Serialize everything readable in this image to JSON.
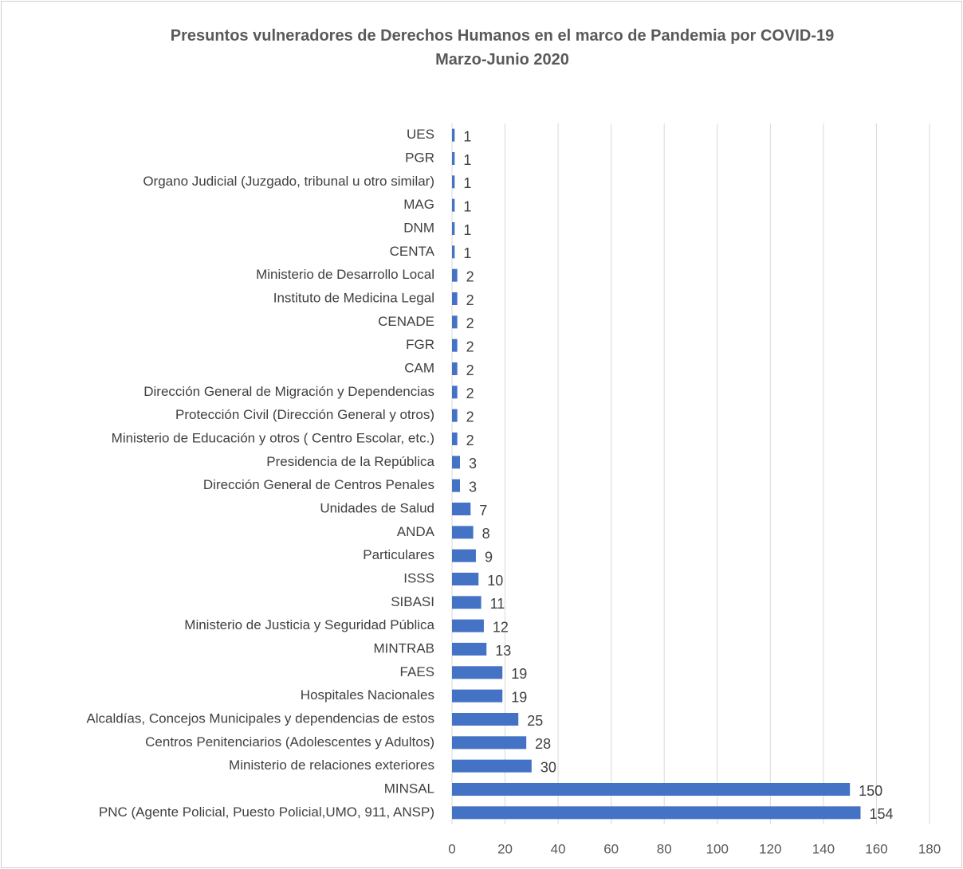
{
  "chart_data": {
    "type": "barh",
    "title": "Presuntos vulneradores de Derechos Humanos en el marco de Pandemia por COVID-19",
    "subtitle": "Marzo-Junio 2020",
    "categories": [
      "UES",
      "PGR",
      "Organo Judicial (Juzgado, tribunal u otro similar)",
      "MAG",
      "DNM",
      "CENTA",
      "Ministerio de Desarrollo Local",
      "Instituto de Medicina Legal",
      "CENADE",
      "FGR",
      "CAM",
      "Dirección General de Migración y Dependencias",
      "Protección Civil (Dirección General y otros)",
      "Ministerio de Educación y otros ( Centro Escolar, etc.)",
      "Presidencia de la República",
      "Dirección General de Centros Penales",
      "Unidades de Salud",
      "ANDA",
      "Particulares",
      "ISSS",
      "SIBASI",
      "Ministerio de Justicia y Seguridad Pública",
      "MINTRAB",
      "FAES",
      "Hospitales Nacionales",
      "Alcaldías, Concejos Municipales y dependencias de estos",
      "Centros Penitenciarios (Adolescentes y Adultos)",
      "Ministerio de relaciones exteriores",
      "MINSAL",
      "PNC (Agente Policial, Puesto Policial,UMO,  911, ANSP)"
    ],
    "values": [
      1,
      1,
      1,
      1,
      1,
      1,
      2,
      2,
      2,
      2,
      2,
      2,
      2,
      2,
      3,
      3,
      7,
      8,
      9,
      10,
      11,
      12,
      13,
      19,
      19,
      25,
      28,
      30,
      150,
      154
    ],
    "color": "#4472c4",
    "xlim": [
      0,
      180
    ],
    "xticks": [
      0,
      20,
      40,
      60,
      80,
      100,
      120,
      140,
      160,
      180
    ],
    "grid": true
  }
}
